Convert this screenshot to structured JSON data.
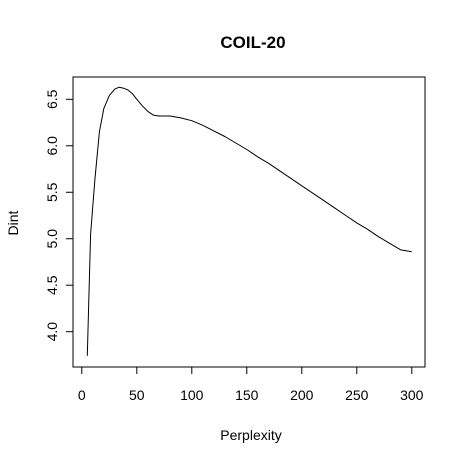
{
  "chart_data": {
    "type": "line",
    "title": "COIL-20",
    "xlabel": "Perplexity",
    "ylabel": "Dint",
    "xlim": [
      -8,
      312
    ],
    "ylim": [
      3.62,
      6.74
    ],
    "xticks": [
      0,
      50,
      100,
      150,
      200,
      250,
      300
    ],
    "xtick_labels": [
      "0",
      "50",
      "100",
      "150",
      "200",
      "250",
      "300"
    ],
    "yticks": [
      4.0,
      4.5,
      5.0,
      5.5,
      6.0,
      6.5
    ],
    "ytick_labels": [
      "4.0",
      "4.5",
      "5.0",
      "5.5",
      "6.0",
      "6.5"
    ],
    "grid": false,
    "series": [
      {
        "x": [
          5,
          8,
          12,
          16,
          20,
          25,
          30,
          34,
          38,
          42,
          46,
          50,
          55,
          60,
          65,
          70,
          80,
          90,
          100,
          110,
          120,
          130,
          140,
          150,
          160,
          170,
          180,
          190,
          200,
          210,
          220,
          230,
          240,
          250,
          260,
          270,
          280,
          290,
          300
        ],
        "y": [
          3.74,
          5.05,
          5.65,
          6.15,
          6.4,
          6.54,
          6.61,
          6.63,
          6.62,
          6.6,
          6.56,
          6.5,
          6.43,
          6.37,
          6.33,
          6.32,
          6.32,
          6.3,
          6.27,
          6.22,
          6.16,
          6.1,
          6.03,
          5.96,
          5.88,
          5.81,
          5.73,
          5.65,
          5.57,
          5.49,
          5.41,
          5.33,
          5.25,
          5.17,
          5.1,
          5.02,
          4.95,
          4.88,
          4.86
        ]
      }
    ]
  }
}
